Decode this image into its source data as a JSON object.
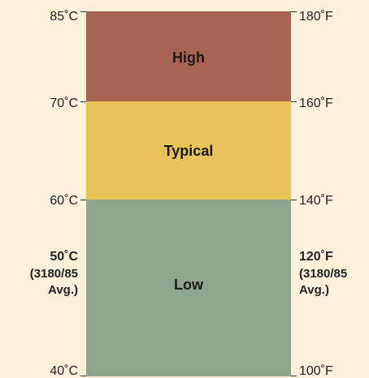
{
  "colors": {
    "background": "#fdf1dc",
    "high": "#a86352",
    "typical": "#e8c35a",
    "low": "#8da68d"
  },
  "bands": {
    "high": "High",
    "typical": "Typical",
    "low": "Low"
  },
  "celsius": {
    "t85": "85˚C",
    "t70": "70˚C",
    "t60": "60˚C",
    "t50": "50˚C",
    "avg_line1": "(3180/85",
    "avg_line2": "Avg.)",
    "t40": "40˚C"
  },
  "fahrenheit": {
    "t180": "180˚F",
    "t160": "160˚F",
    "t140": "140˚F",
    "t120": "120˚F",
    "avg_line1": "(3180/85",
    "avg_line2": "Avg.)",
    "t100": "100˚F"
  }
}
